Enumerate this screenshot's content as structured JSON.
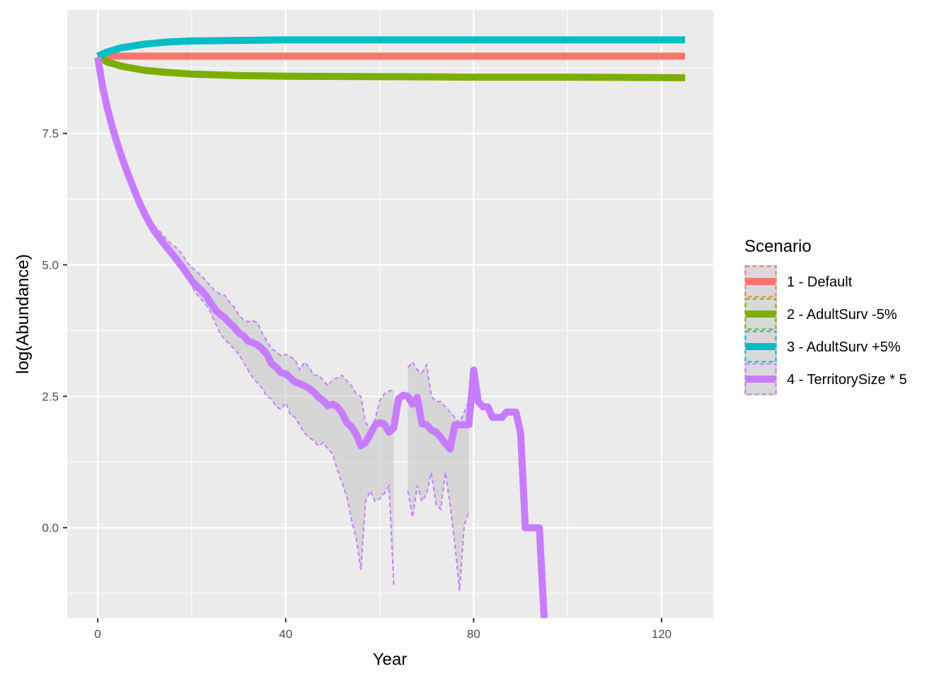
{
  "chart_data": {
    "type": "line",
    "xlabel": "Year",
    "ylabel": "log(Abundance)",
    "xlim": [
      -6.5,
      131
    ],
    "ylim": [
      -1.72,
      9.85
    ],
    "x_ticks": [
      0,
      40,
      80,
      120
    ],
    "x_tick_labels": [
      "0",
      "40",
      "80",
      "120"
    ],
    "y_ticks": [
      0,
      2.5,
      5,
      7.5
    ],
    "y_tick_labels": [
      "0.0",
      "2.5",
      "5.0",
      "7.5"
    ],
    "grid": true,
    "legend": {
      "title": "Scenario",
      "position": "right"
    },
    "series": [
      {
        "name": "1 - Default",
        "color": "#F8766D",
        "x": [
          0,
          5,
          10,
          20,
          30,
          40,
          60,
          80,
          100,
          125
        ],
        "y": [
          8.97,
          8.97,
          8.97,
          8.97,
          8.97,
          8.97,
          8.97,
          8.97,
          8.97,
          8.97
        ]
      },
      {
        "name": "2 - AdultSurv -5%",
        "color": "#7CAE00",
        "x": [
          0,
          2,
          5,
          10,
          15,
          20,
          30,
          40,
          60,
          80,
          100,
          125
        ],
        "y": [
          8.97,
          8.86,
          8.78,
          8.7,
          8.66,
          8.63,
          8.6,
          8.59,
          8.58,
          8.57,
          8.57,
          8.56
        ]
      },
      {
        "name": "3 - AdultSurv +5%",
        "color": "#00BFC4",
        "x": [
          0,
          2,
          5,
          10,
          15,
          20,
          30,
          40,
          60,
          80,
          100,
          125
        ],
        "y": [
          8.97,
          9.05,
          9.13,
          9.2,
          9.24,
          9.26,
          9.27,
          9.28,
          9.28,
          9.28,
          9.28,
          9.28
        ]
      },
      {
        "name": "4 - TerritorySize * 5",
        "color": "#C77CFF",
        "x": [
          0,
          1,
          2,
          3,
          4,
          5,
          6,
          7,
          8,
          9,
          10,
          11,
          12,
          13,
          14,
          15,
          16,
          17,
          18,
          19,
          20,
          21,
          22,
          23,
          24,
          25,
          26,
          27,
          28,
          29,
          30,
          31,
          32,
          33,
          34,
          35,
          36,
          37,
          38,
          39,
          40,
          41,
          42,
          43,
          44,
          45,
          46,
          47,
          48,
          49,
          50,
          51,
          52,
          53,
          54,
          55,
          56,
          57,
          58,
          59,
          60,
          61,
          62,
          63,
          64,
          65,
          66,
          67,
          68,
          69,
          70,
          71,
          72,
          73,
          74,
          75,
          76,
          77,
          78,
          79,
          80,
          81,
          82,
          83,
          84,
          85,
          86,
          87,
          88,
          89,
          90,
          91,
          92,
          93,
          94,
          95
        ],
        "y": [
          8.95,
          8.4,
          8.0,
          7.65,
          7.35,
          7.08,
          6.83,
          6.6,
          6.37,
          6.16,
          5.97,
          5.8,
          5.65,
          5.53,
          5.41,
          5.3,
          5.19,
          5.08,
          4.96,
          4.83,
          4.7,
          4.6,
          4.52,
          4.42,
          4.28,
          4.15,
          4.06,
          4.0,
          3.9,
          3.82,
          3.71,
          3.65,
          3.55,
          3.52,
          3.48,
          3.4,
          3.3,
          3.12,
          3.05,
          2.95,
          2.93,
          2.85,
          2.77,
          2.74,
          2.7,
          2.65,
          2.58,
          2.48,
          2.42,
          2.32,
          2.35,
          2.3,
          2.18,
          2.0,
          1.92,
          1.78,
          1.56,
          1.62,
          1.78,
          1.95,
          2.0,
          1.97,
          1.82,
          1.9,
          2.45,
          2.52,
          2.5,
          2.35,
          2.48,
          1.98,
          1.96,
          1.86,
          1.82,
          1.72,
          1.6,
          1.5,
          1.96,
          1.96,
          1.96,
          1.96,
          3.0,
          2.4,
          2.3,
          2.3,
          2.1,
          2.1,
          2.1,
          2.2,
          2.2,
          2.2,
          1.8,
          0.0,
          0.0,
          0.0,
          0.0,
          -1.72
        ],
        "ribbon": {
          "segments": [
            {
              "x": [
                12,
                13,
                14,
                15,
                16,
                17,
                18,
                19,
                20,
                21,
                22,
                23,
                24,
                25,
                26,
                27,
                28,
                29,
                30,
                31,
                32,
                33,
                34,
                35,
                36,
                37,
                38,
                39,
                40,
                41,
                42,
                43,
                44,
                45,
                46,
                47,
                48,
                49,
                50,
                51,
                52,
                53,
                54,
                55,
                56,
                57,
                58,
                59,
                60,
                61,
                62,
                63
              ],
              "upper": [
                5.75,
                5.66,
                5.55,
                5.45,
                5.38,
                5.3,
                5.2,
                5.05,
                4.95,
                4.88,
                4.8,
                4.7,
                4.6,
                4.5,
                4.45,
                4.42,
                4.3,
                4.2,
                4.05,
                3.95,
                3.92,
                3.94,
                3.9,
                3.7,
                3.55,
                3.4,
                3.35,
                3.27,
                3.3,
                3.25,
                3.2,
                3.0,
                3.15,
                3.05,
                2.9,
                2.9,
                2.8,
                2.7,
                2.82,
                2.85,
                2.9,
                2.8,
                2.7,
                2.55,
                2.5,
                2.0,
                1.9,
                2.05,
                2.42,
                2.55,
                2.6,
                2.62
              ],
              "lower": [
                5.7,
                5.55,
                5.4,
                5.25,
                5.1,
                4.98,
                4.9,
                4.75,
                4.6,
                4.45,
                4.35,
                4.25,
                4.1,
                3.9,
                3.7,
                3.58,
                3.5,
                3.4,
                3.3,
                3.15,
                3.0,
                2.85,
                2.75,
                2.65,
                2.5,
                2.45,
                2.3,
                2.25,
                2.38,
                2.15,
                2.1,
                1.95,
                1.8,
                1.72,
                1.65,
                1.55,
                1.62,
                1.5,
                1.4,
                1.1,
                0.85,
                0.6,
                0.15,
                -0.2,
                -0.8,
                0.5,
                0.7,
                0.5,
                0.55,
                0.65,
                0.8,
                -1.1
              ]
            },
            {
              "x": [
                66,
                67,
                68,
                69,
                70,
                71,
                72,
                73,
                74,
                75,
                76,
                77,
                78,
                79
              ],
              "upper": [
                3.05,
                3.15,
                3.0,
                2.95,
                3.1,
                2.5,
                2.4,
                2.4,
                2.3,
                2.2,
                2.1,
                2.0,
                2.2,
                2.42
              ],
              "lower": [
                0.7,
                0.2,
                0.8,
                0.5,
                0.65,
                1.05,
                0.45,
                0.35,
                1.05,
                0.42,
                -0.3,
                -1.2,
                0.05,
                0.3
              ]
            }
          ]
        }
      }
    ]
  }
}
